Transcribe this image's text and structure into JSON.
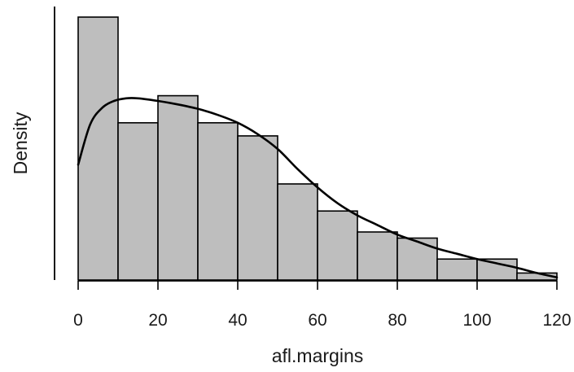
{
  "chart_data": {
    "type": "bar",
    "subtype": "histogram with density curve",
    "title": "",
    "xlabel": "afl.margins",
    "ylabel": "Density",
    "xlim": [
      0,
      120
    ],
    "x_ticks": [
      0,
      20,
      40,
      60,
      80,
      100,
      120
    ],
    "x_tick_labels": [
      "0",
      "20",
      "40",
      "60",
      "80",
      "100",
      "120"
    ],
    "y_ticks_shown": false,
    "grid": false,
    "bin_width": 10,
    "bins": [
      {
        "start": 0,
        "end": 10,
        "density": 0.0301
      },
      {
        "start": 10,
        "end": 20,
        "density": 0.018
      },
      {
        "start": 20,
        "end": 30,
        "density": 0.0211
      },
      {
        "start": 30,
        "end": 40,
        "density": 0.018
      },
      {
        "start": 40,
        "end": 50,
        "density": 0.0165
      },
      {
        "start": 50,
        "end": 60,
        "density": 0.011
      },
      {
        "start": 60,
        "end": 70,
        "density": 0.0079
      },
      {
        "start": 70,
        "end": 80,
        "density": 0.0055
      },
      {
        "start": 80,
        "end": 90,
        "density": 0.0048
      },
      {
        "start": 90,
        "end": 100,
        "density": 0.0024
      },
      {
        "start": 100,
        "end": 110,
        "density": 0.0024
      },
      {
        "start": 110,
        "end": 120,
        "density": 0.0008
      }
    ],
    "density_curve": {
      "x": [
        0,
        3,
        6,
        9,
        12,
        15,
        20,
        25,
        30,
        35,
        40,
        45,
        50,
        55,
        60,
        65,
        70,
        75,
        80,
        85,
        90,
        95,
        100,
        105,
        110,
        115,
        120
      ],
      "y": [
        0.0132,
        0.0178,
        0.0197,
        0.0205,
        0.0208,
        0.0208,
        0.0205,
        0.0201,
        0.0196,
        0.0189,
        0.018,
        0.0167,
        0.015,
        0.0127,
        0.0106,
        0.0088,
        0.0074,
        0.0063,
        0.0052,
        0.0044,
        0.0036,
        0.003,
        0.0024,
        0.0019,
        0.0014,
        0.0008,
        0.0003
      ]
    }
  },
  "colors": {
    "bar_fill": "#bebebe",
    "bar_stroke": "#000000",
    "curve": "#000000",
    "text": "#1a1a1a"
  }
}
